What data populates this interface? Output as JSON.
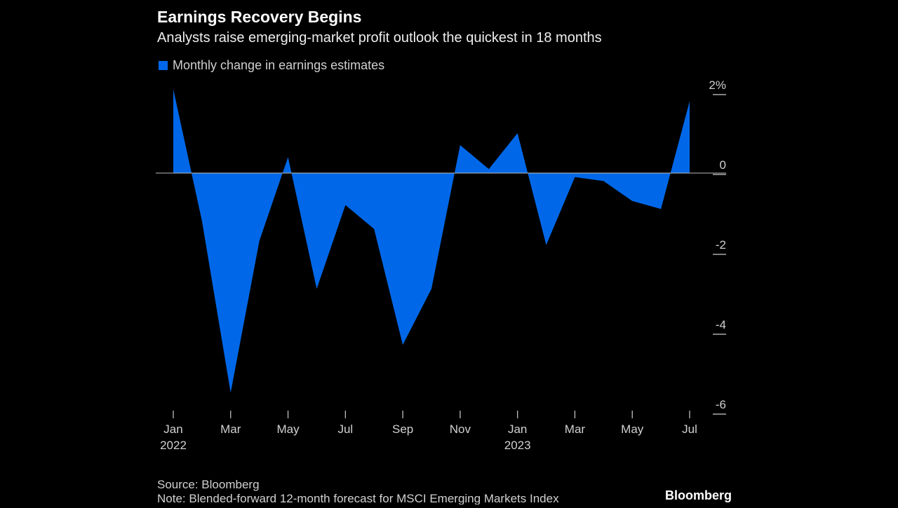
{
  "chart_data": {
    "type": "area",
    "title": "Earnings Recovery Begins",
    "subtitle": "Analysts raise emerging-market profit outlook the quickest in 18 months",
    "categories": [
      "Jan",
      null,
      "Mar",
      null,
      "May",
      null,
      "Jul",
      null,
      "Sep",
      null,
      "Nov",
      null,
      "Jan",
      null,
      "Mar",
      null,
      "May",
      null,
      "Jul"
    ],
    "category_years": [
      "2022",
      null,
      null,
      null,
      null,
      null,
      null,
      null,
      null,
      null,
      null,
      null,
      "2023",
      null,
      null,
      null,
      null,
      null,
      null
    ],
    "series": [
      {
        "name": "Monthly change in earnings estimates",
        "color": "#0068e8",
        "values": [
          2.1,
          -1.2,
          -5.5,
          -1.7,
          0.4,
          -2.9,
          -0.8,
          -1.4,
          -4.3,
          -2.9,
          0.7,
          0.1,
          1.0,
          -1.8,
          -0.1,
          -0.2,
          -0.7,
          -0.9,
          1.8
        ]
      }
    ],
    "ylim": [
      -6,
      2.2
    ],
    "yticks": [
      {
        "value": 2,
        "label": "2%"
      },
      0,
      -2,
      -4,
      -6
    ],
    "source": "Source: Bloomberg",
    "note": "Note: Blended-forward 12-month forecast for MSCI Emerging Markets Index",
    "logo": "Bloomberg"
  }
}
